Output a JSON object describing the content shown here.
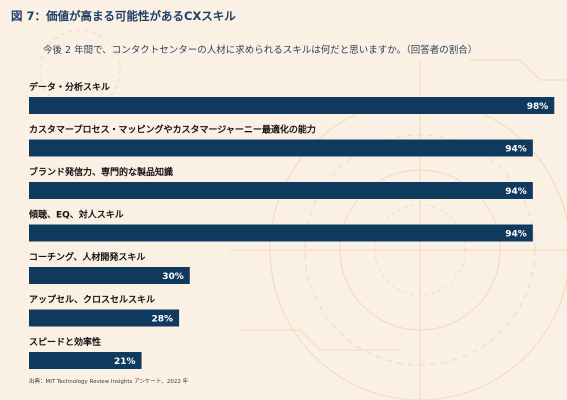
{
  "figure_title": "図 7：価値が高まる可能性があるCXスキル",
  "subtitle": "今後 2 年間で、コンタクトセンターの人材に求められるスキルは何だと思いますか。（回答者の割合）",
  "source": "出典：MIT Technology Review Insights アンケート、2022 年",
  "colors": {
    "bar": "#0f3a5e",
    "label": "#111111",
    "value_text": "#ffffff",
    "title": "#1f3f66"
  },
  "chart_data": {
    "type": "bar",
    "orientation": "horizontal",
    "title": "図 7：価値が高まる可能性があるCXスキル",
    "subtitle": "今後 2 年間で、コンタクトセンターの人材に求められるスキルは何だと思いますか。（回答者の割合）",
    "categories": [
      "データ・分析スキル",
      "カスタマープロセス・マッピングやカスタマージャーニー最適化の能力",
      "ブランド発信力、専門的な製品知識",
      "傾聴、EQ、対人スキル",
      "コーチング、人材開発スキル",
      "アップセル、クロスセルスキル",
      "スピードと効率性"
    ],
    "values": [
      98,
      94,
      94,
      94,
      30,
      28,
      21
    ],
    "value_labels": [
      "98%",
      "94%",
      "94%",
      "94%",
      "30%",
      "28%",
      "21%"
    ],
    "unit": "%",
    "xlim": [
      0,
      100
    ],
    "grid": false
  }
}
